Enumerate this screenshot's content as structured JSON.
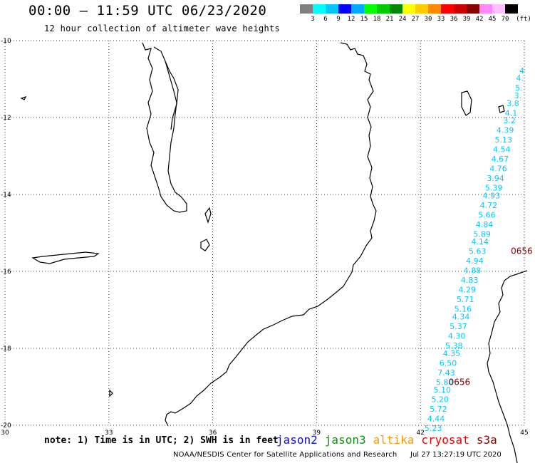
{
  "header": {
    "title": "00:00 – 11:59 UTC 06/23/2020",
    "subtitle": "12 hour collection of altimeter wave heights"
  },
  "colorbar": {
    "unit_label": "(ft)",
    "swatches": [
      {
        "color": "#808080",
        "label": "3"
      },
      {
        "color": "#00ffff",
        "label": "6"
      },
      {
        "color": "#00c8ff",
        "label": "9"
      },
      {
        "color": "#0000ff",
        "label": "12"
      },
      {
        "color": "#00aaff",
        "label": "15"
      },
      {
        "color": "#00ff00",
        "label": "18"
      },
      {
        "color": "#00cc00",
        "label": "21"
      },
      {
        "color": "#008800",
        "label": "24"
      },
      {
        "color": "#ffff00",
        "label": "27"
      },
      {
        "color": "#ffcc00",
        "label": "30"
      },
      {
        "color": "#ff8800",
        "label": "33"
      },
      {
        "color": "#ff0000",
        "label": "36"
      },
      {
        "color": "#cc0000",
        "label": "39"
      },
      {
        "color": "#880000",
        "label": "42"
      },
      {
        "color": "#ff88ff",
        "label": "45"
      },
      {
        "color": "#ffc0ff",
        "label": "70"
      },
      {
        "color": "#000000",
        "label": ""
      }
    ]
  },
  "map": {
    "lon_ticks": [
      "30",
      "33",
      "36",
      "39",
      "42",
      "45"
    ],
    "lat_ticks": [
      "-10",
      "-12",
      "-14",
      "-16",
      "-18",
      "-20"
    ],
    "lon_range": [
      30,
      45
    ],
    "lat_range": [
      -20,
      -10
    ],
    "wave_color": "#00c8ff",
    "pass_color": "#800000",
    "pass_labels": [
      {
        "text": "0656",
        "lon": 44.9,
        "lat": -15.55
      },
      {
        "text": "0656",
        "lon": 43.1,
        "lat": -18.95
      }
    ],
    "wave_heights": [
      {
        "text": "4",
        "lon": 45.0,
        "lat": -10.85
      },
      {
        "text": "4.",
        "lon": 44.98,
        "lat": -11.05
      },
      {
        "text": "5.",
        "lon": 44.95,
        "lat": -11.3
      },
      {
        "text": "3.",
        "lon": 44.92,
        "lat": -11.5
      },
      {
        "text": "3.8",
        "lon": 44.85,
        "lat": -11.7
      },
      {
        "text": "4.1",
        "lon": 44.8,
        "lat": -11.95
      },
      {
        "text": "3.2",
        "lon": 44.75,
        "lat": -12.15
      },
      {
        "text": "4.39",
        "lon": 44.7,
        "lat": -12.4
      },
      {
        "text": "5.13",
        "lon": 44.65,
        "lat": -12.65
      },
      {
        "text": "4.54",
        "lon": 44.6,
        "lat": -12.9
      },
      {
        "text": "4.67",
        "lon": 44.55,
        "lat": -13.15
      },
      {
        "text": "4.76",
        "lon": 44.5,
        "lat": -13.4
      },
      {
        "text": "3.94",
        "lon": 44.42,
        "lat": -13.65
      },
      {
        "text": "5.39",
        "lon": 44.37,
        "lat": -13.9
      },
      {
        "text": "4.93",
        "lon": 44.3,
        "lat": -14.1
      },
      {
        "text": "4.72",
        "lon": 44.22,
        "lat": -14.35
      },
      {
        "text": "5.66",
        "lon": 44.17,
        "lat": -14.6
      },
      {
        "text": "4.84",
        "lon": 44.1,
        "lat": -14.85
      },
      {
        "text": "5.89",
        "lon": 44.03,
        "lat": -15.1
      },
      {
        "text": "4.14",
        "lon": 43.97,
        "lat": -15.3
      },
      {
        "text": "5.63",
        "lon": 43.9,
        "lat": -15.55
      },
      {
        "text": "4.94",
        "lon": 43.82,
        "lat": -15.8
      },
      {
        "text": "4.88",
        "lon": 43.75,
        "lat": -16.05
      },
      {
        "text": "4.83",
        "lon": 43.67,
        "lat": -16.3
      },
      {
        "text": "4.29",
        "lon": 43.6,
        "lat": -16.55
      },
      {
        "text": "5.71",
        "lon": 43.55,
        "lat": -16.8
      },
      {
        "text": "5.16",
        "lon": 43.48,
        "lat": -17.05
      },
      {
        "text": "4.34",
        "lon": 43.42,
        "lat": -17.25
      },
      {
        "text": "5.37",
        "lon": 43.35,
        "lat": -17.5
      },
      {
        "text": "4.30",
        "lon": 43.3,
        "lat": -17.75
      },
      {
        "text": "5.38",
        "lon": 43.22,
        "lat": -18.0
      },
      {
        "text": "4.35",
        "lon": 43.15,
        "lat": -18.2
      },
      {
        "text": "6.50",
        "lon": 43.05,
        "lat": -18.45
      },
      {
        "text": "7.43",
        "lon": 43.0,
        "lat": -18.7
      },
      {
        "text": "5.80",
        "lon": 42.95,
        "lat": -18.95
      },
      {
        "text": "5.10",
        "lon": 42.88,
        "lat": -19.15
      },
      {
        "text": "5.20",
        "lon": 42.82,
        "lat": -19.4
      },
      {
        "text": "5.72",
        "lon": 42.77,
        "lat": -19.65
      },
      {
        "text": "4.44",
        "lon": 42.7,
        "lat": -19.9
      },
      {
        "text": "5.23",
        "lon": 42.62,
        "lat": -20.15
      }
    ]
  },
  "footer": {
    "note": "note: 1) Time is in UTC; 2) SWH is in feet",
    "satellites": [
      {
        "name": "jason2",
        "color": "#1010e0"
      },
      {
        "name": "jason3",
        "color": "#109010"
      },
      {
        "name": "altika",
        "color": "#ff9900"
      },
      {
        "name": "cryosat",
        "color": "#ee0000"
      },
      {
        "name": "s3a",
        "color": "#900000"
      }
    ],
    "credit": "NOAA/NESDIS Center for Satellite Applications and Research",
    "timestamp": "Jul 27 13:27:19 UTC 2020"
  }
}
